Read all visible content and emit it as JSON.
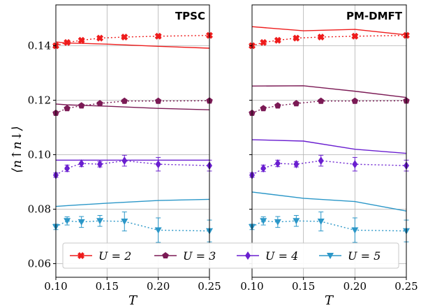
{
  "chart_data": {
    "type": "line",
    "ylabel": "⟨n↑n↓⟩",
    "ylim": [
      0.055,
      0.155
    ],
    "yticks": [
      0.06,
      0.08,
      0.1,
      0.12,
      0.14
    ],
    "ytick_labels": [
      "0.06",
      "0.08",
      "0.10",
      "0.12",
      "0.14"
    ],
    "xlim": [
      0.1,
      0.25
    ],
    "xticks": [
      0.1,
      0.15,
      0.2,
      0.25
    ],
    "xtick_labels": [
      "0.10",
      "0.15",
      "0.20",
      "0.25"
    ],
    "xlabel": "T",
    "grid": true,
    "legend": {
      "placement": "bottom",
      "entries": [
        {
          "label": "U = 2",
          "color": "#ee1c1c",
          "marker": "cross"
        },
        {
          "label": "U = 3",
          "color": "#7b1a55",
          "marker": "pentagon"
        },
        {
          "label": "U = 4",
          "color": "#6a1fd0",
          "marker": "diamond"
        },
        {
          "label": "U = 5",
          "color": "#2b97c8",
          "marker": "triangle-down"
        }
      ]
    },
    "reference": {
      "style": "dotted",
      "x": [
        0.1,
        0.111,
        0.125,
        0.143,
        0.167,
        0.2,
        0.25
      ],
      "series": [
        {
          "name": "U = 2",
          "values": [
            0.14,
            0.1412,
            0.142,
            0.1428,
            0.1432,
            0.1435,
            0.1438
          ],
          "err": [
            0.0003,
            0.0003,
            0.0003,
            0.0003,
            0.0003,
            0.0005,
            0.0004
          ]
        },
        {
          "name": "U = 3",
          "values": [
            0.1153,
            0.117,
            0.118,
            0.1188,
            0.1197,
            0.1197,
            0.1198
          ],
          "err": [
            0.0004,
            0.0004,
            0.0004,
            0.0004,
            0.0004,
            0.0005,
            0.0005
          ]
        },
        {
          "name": "U = 4",
          "values": [
            0.0925,
            0.095,
            0.0968,
            0.0965,
            0.0978,
            0.0965,
            0.096
          ],
          "err": [
            0.0008,
            0.0012,
            0.0012,
            0.001,
            0.002,
            0.0025,
            0.002
          ]
        },
        {
          "name": "U = 5",
          "values": [
            0.0735,
            0.0757,
            0.0753,
            0.0757,
            0.0755,
            0.0723,
            0.072
          ],
          "err": [
            0.001,
            0.0015,
            0.002,
            0.002,
            0.0035,
            0.0045,
            0.004
          ]
        }
      ]
    },
    "panels": [
      {
        "title": "TPSC",
        "x": [
          0.1,
          0.111,
          0.15,
          0.2,
          0.25
        ],
        "series": [
          {
            "name": "U = 2",
            "values": [
              0.1414,
              0.141,
              0.1406,
              0.1398,
              0.1391
            ]
          },
          {
            "name": "U = 3",
            "values": [
              0.1186,
              0.1183,
              0.1178,
              0.117,
              0.1165
            ]
          },
          {
            "name": "U = 4",
            "values": [
              0.098,
              0.098,
              0.098,
              0.098,
              0.098
            ]
          },
          {
            "name": "U = 5",
            "values": [
              0.081,
              0.0813,
              0.0822,
              0.0832,
              0.0836
            ]
          }
        ]
      },
      {
        "title": "PM-DMFT",
        "x": [
          0.1,
          0.15,
          0.2,
          0.25
        ],
        "series": [
          {
            "name": "U = 2",
            "values": [
              0.147,
              0.1455,
              0.146,
              0.144
            ]
          },
          {
            "name": "U = 3",
            "values": [
              0.1252,
              0.1253,
              0.1233,
              0.121
            ]
          },
          {
            "name": "U = 4",
            "values": [
              0.1055,
              0.105,
              0.102,
              0.1005
            ]
          },
          {
            "name": "U = 5",
            "values": [
              0.0863,
              0.084,
              0.0828,
              0.0793
            ]
          }
        ]
      }
    ]
  }
}
